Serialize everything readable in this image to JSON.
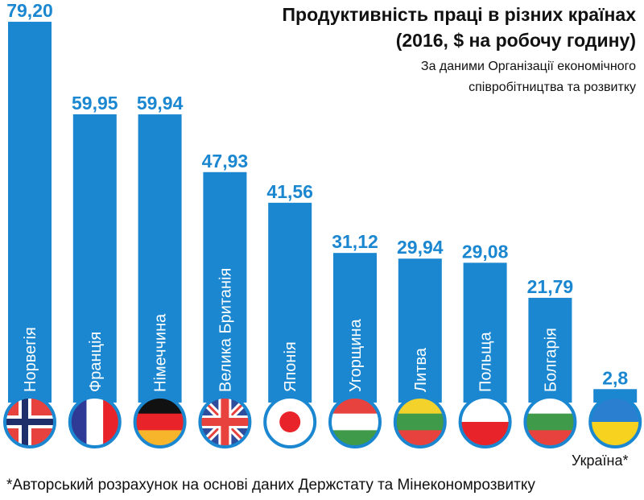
{
  "chart_data": {
    "type": "bar",
    "title": "Продуктивність праці в різних країнах",
    "subtitle": "(2016, $ на робочу годину)",
    "source_line1": "За даними Організації економічного",
    "source_line2": "співробітництва та розвитку",
    "categories": [
      "Норвегія",
      "Франція",
      "Німеччина",
      "Велика Британія",
      "Японія",
      "Угорщина",
      "Литва",
      "Польща",
      "Болгарія",
      "Україна*"
    ],
    "values": [
      79.2,
      59.95,
      59.94,
      47.93,
      41.56,
      31.12,
      29.94,
      29.08,
      21.79,
      2.8
    ],
    "value_labels": [
      "79,20",
      "59,95",
      "59,94",
      "47,93",
      "41,56",
      "31,12",
      "29,94",
      "29,08",
      "21,79",
      "2,8"
    ],
    "flags": [
      "norway-flag",
      "france-flag",
      "germany-flag",
      "uk-flag",
      "japan-flag",
      "hungary-flag",
      "lithuania-flag",
      "poland-flag",
      "bulgaria-flag",
      "ukraine-flag"
    ],
    "ylim": [
      0,
      80
    ],
    "bar_color": "#1a87d0",
    "footnote": "*Авторський розрахунок на основі даних Держстату та Мінекономрозвитку"
  }
}
